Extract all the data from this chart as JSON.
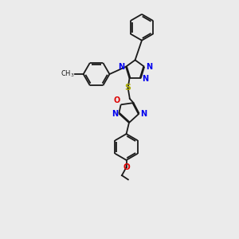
{
  "background_color": "#ebebeb",
  "bond_color": "#1a1a1a",
  "N_color": "#0000ee",
  "O_color": "#dd0000",
  "S_color": "#aaaa00",
  "figsize": [
    3.0,
    3.0
  ],
  "dpi": 100,
  "lw": 1.3,
  "fs": 7.0,
  "xlim": [
    0,
    10
  ],
  "ylim": [
    0,
    16
  ]
}
